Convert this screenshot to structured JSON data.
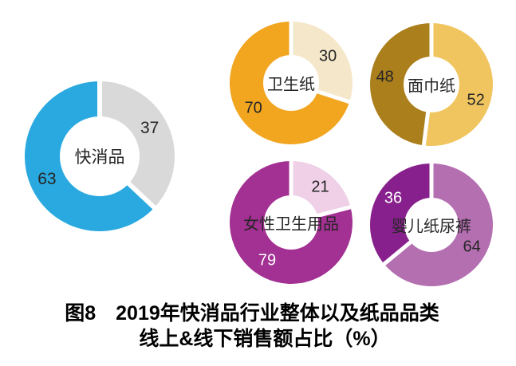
{
  "chart_data": {
    "type": "pie",
    "title": "图8　2019年快消品行业整体以及纸品品类",
    "subtitle": "线上&线下销售额占比（%）",
    "charts": [
      {
        "label": "快消品",
        "slices": [
          {
            "value": 37,
            "color": "#D9D9D9"
          },
          {
            "value": 63,
            "color": "#29A9DF"
          }
        ]
      },
      {
        "label": "卫生纸",
        "slices": [
          {
            "value": 30,
            "color": "#F5E8CA"
          },
          {
            "value": 70,
            "color": "#F2A51F"
          }
        ]
      },
      {
        "label": "面巾纸",
        "slices": [
          {
            "value": 52,
            "color": "#F0C55F"
          },
          {
            "value": 48,
            "color": "#AA7F1C"
          }
        ]
      },
      {
        "label": "女性卫生用品",
        "slices": [
          {
            "value": 21,
            "color": "#EFD0E7"
          },
          {
            "value": 79,
            "color": "#A33093"
          }
        ]
      },
      {
        "label": "婴儿纸尿裤",
        "slices": [
          {
            "value": 64,
            "color": "#B46FB1"
          },
          {
            "value": 36,
            "color": "#87208C"
          }
        ]
      }
    ]
  }
}
